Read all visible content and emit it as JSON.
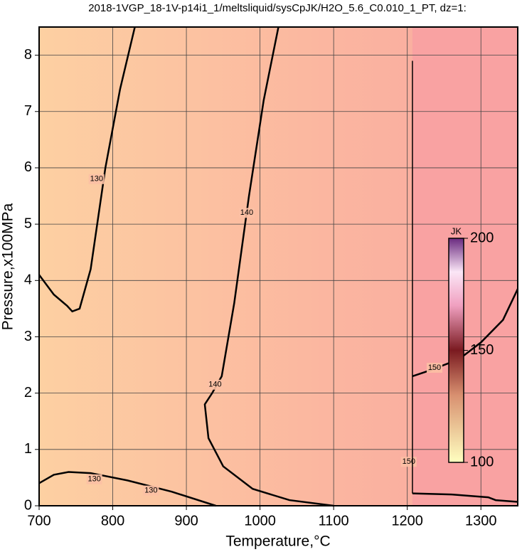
{
  "chart_data": {
    "type": "contour",
    "title": "2018-1VGP_18-1V-p14i1_1/meltsliquid/sysCpJK/H2O_5.6_C0.010_1_PT, dz=1:",
    "x_label": "Temperature,°C",
    "y_label": "Pressure,x100MPa",
    "xlim": [
      700,
      1350
    ],
    "ylim": [
      0,
      8.5
    ],
    "xticks": [
      700,
      800,
      900,
      1000,
      1100,
      1200,
      1300
    ],
    "yticks": [
      0,
      1,
      2,
      3,
      4,
      5,
      6,
      7,
      8
    ],
    "grid": true,
    "contours": [
      {
        "level": 130,
        "x": [
          700,
          720,
          738,
          745,
          755,
          770,
          790,
          810,
          830
        ],
        "y": [
          4.1,
          3.75,
          3.55,
          3.45,
          3.5,
          4.2,
          6.0,
          7.4,
          8.5
        ]
      },
      {
        "level": 140,
        "x": [
          1100,
          1040,
          990,
          950,
          930,
          925,
          935,
          948,
          965,
          985,
          1005,
          1025
        ],
        "y": [
          0,
          0.1,
          0.3,
          0.7,
          1.2,
          1.8,
          2.0,
          2.3,
          3.6,
          5.5,
          7.2,
          8.5
        ]
      },
      {
        "level": 130,
        "x": [
          700,
          720,
          740,
          770,
          820,
          880,
          940
        ],
        "y": [
          0.4,
          0.55,
          0.6,
          0.58,
          0.45,
          0.25,
          0
        ]
      },
      {
        "level": 150,
        "x": [
          1207,
          1230,
          1270,
          1300,
          1330,
          1350
        ],
        "y": [
          2.3,
          2.4,
          2.6,
          2.9,
          3.3,
          3.85
        ]
      },
      {
        "level": 150,
        "x": [
          1207,
          1260,
          1310,
          1320,
          1350
        ],
        "y": [
          0.22,
          0.2,
          0.15,
          0.1,
          0.07
        ]
      }
    ],
    "contour_labels": [
      {
        "level": 130,
        "x": 778,
        "y": 5.8
      },
      {
        "level": 130,
        "x": 775,
        "y": 0.47
      },
      {
        "level": 130,
        "x": 852,
        "y": 0.27
      },
      {
        "level": 140,
        "x": 982,
        "y": 5.2
      },
      {
        "level": 140,
        "x": 939,
        "y": 2.15
      },
      {
        "level": 150,
        "x": 1237,
        "y": 2.45
      },
      {
        "level": 150,
        "x": 1202,
        "y": 0.78
      }
    ],
    "colorbar": {
      "label": "JK",
      "lim": [
        100,
        200
      ],
      "ticks": [
        100,
        150,
        200
      ]
    }
  }
}
